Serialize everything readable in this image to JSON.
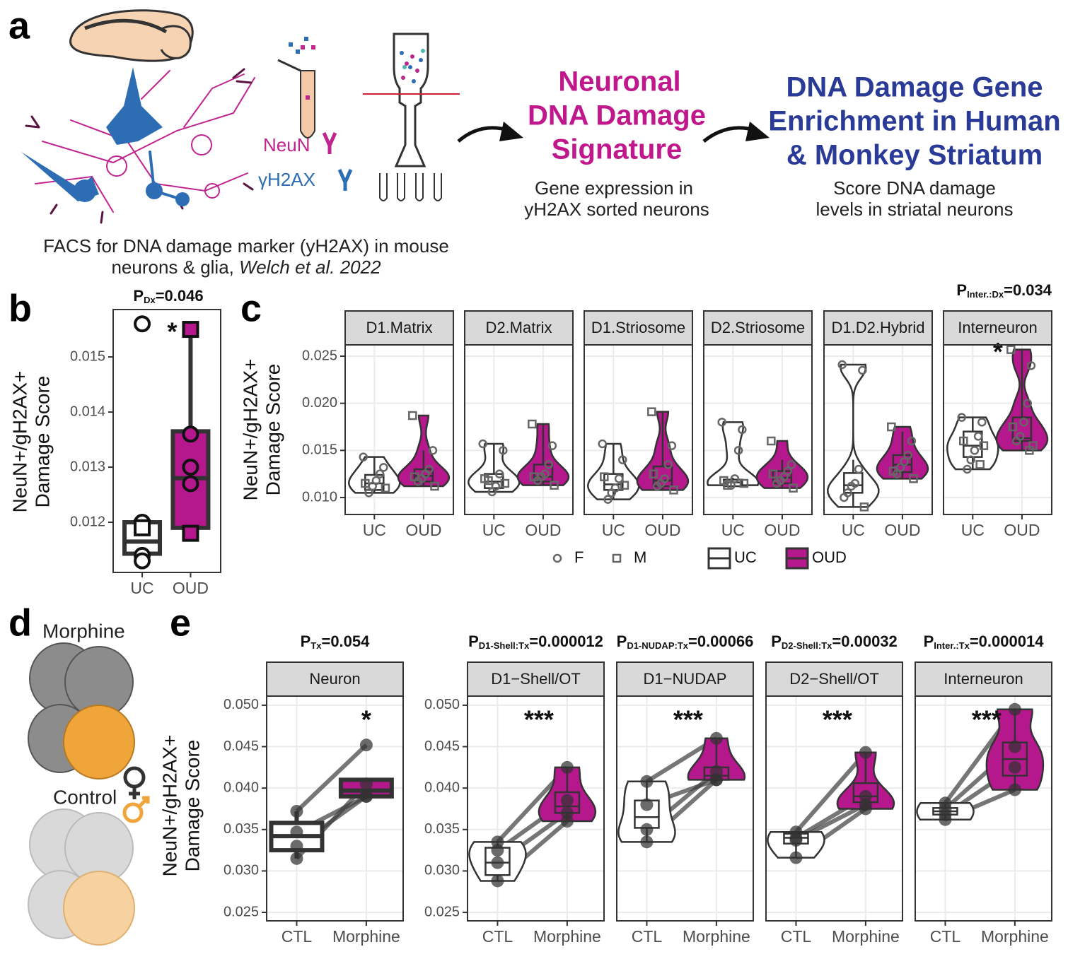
{
  "panel_labels": [
    "a",
    "b",
    "c",
    "d",
    "e"
  ],
  "panel_a": {
    "neun": "NeuN",
    "h2ax": "γH2AX",
    "caption_line1": "FACS for DNA damage marker (yH2AX) in mouse",
    "caption_line2": "neurons & glia, ",
    "caption_italic": "Welch et al. 2022",
    "step1_title": [
      "Neuronal",
      "DNA Damage",
      "Signature"
    ],
    "step1_text": [
      "Gene expression in",
      "yH2AX sorted neurons"
    ],
    "step2_title": [
      "DNA Damage Gene",
      "Enrichment in Human",
      "& Monkey Striatum"
    ],
    "step2_text": [
      "Score DNA damage",
      "levels in striatal neurons"
    ]
  },
  "panel_d": {
    "morphine": "Morphine",
    "control": "Control"
  },
  "chart_data": [
    {
      "type": "box",
      "p_label": {
        "main": "P",
        "sub": "Dx",
        "rest": "=0.046"
      },
      "y_label": [
        "NeuN+/gH2AX+",
        "Damage Score"
      ],
      "ylim": [
        0.01109,
        0.01586
      ],
      "yticks": [
        0.012,
        0.013,
        0.014,
        0.015
      ],
      "categories": [
        "UC",
        "OUD"
      ],
      "colors": [
        "#ffffff",
        "#b5178d"
      ],
      "grid": false,
      "violin": false,
      "facets": [
        {
          "groups": [
            {
              "points": [
                0.0156,
                0.012,
                0.0119,
                0.0114,
                0.0113
              ],
              "sex": [
                "F",
                "F",
                "M",
                "F",
                "F"
              ],
              "q1": 0.01143,
              "median": 0.01165,
              "q3": 0.012,
              "lo": 0.0113,
              "hi": 0.012
            },
            {
              "points": [
                0.0155,
                0.0136,
                0.013,
                0.0127,
                0.0118
              ],
              "sex": [
                "M",
                "F",
                "F",
                "F",
                "M"
              ],
              "q1": 0.0119,
              "median": 0.0128,
              "q3": 0.01365,
              "lo": 0.0118,
              "hi": 0.0155,
              "significance": "*"
            }
          ]
        }
      ]
    },
    {
      "type": "violin",
      "p_label": {
        "main": "P",
        "sub": "Inter.:Dx",
        "rest": "=0.034"
      },
      "y_label": [
        "NeuN+/gH2AX+",
        "Damage Score"
      ],
      "ylim": [
        0.0082,
        0.0262
      ],
      "yticks": [
        {
          "value": 0.01,
          "label": "0.010"
        },
        0.015,
        {
          "value": 0.02,
          "label": "0.020"
        },
        0.025
      ],
      "categories": [
        "UC",
        "OUD"
      ],
      "colors": [
        "#ffffff",
        "#b5178d"
      ],
      "grid": true,
      "violin": true,
      "legend": true,
      "shape_legend": [
        {
          "label": "F",
          "shape": "circle"
        },
        {
          "label": "M",
          "shape": "square"
        }
      ],
      "facets": [
        {
          "name": "D1.Matrix",
          "groups": [
            {
              "points": [
                0.0143,
                0.0132,
                0.0125,
                0.0118,
                0.0112,
                0.0105,
                0.0115,
                0.011
              ],
              "sex": [
                "F",
                "F",
                "F",
                "F",
                "F",
                "F",
                "M",
                "M"
              ],
              "q1": 0.0108,
              "median": 0.0115,
              "q3": 0.0124,
              "lo": 0.0105,
              "hi": 0.0143
            },
            {
              "points": [
                0.0187,
                0.015,
                0.013,
                0.0125,
                0.012,
                0.0117,
                0.0122,
                0.0112
              ],
              "sex": [
                "M",
                "F",
                "F",
                "F",
                "F",
                "F",
                "M",
                "M"
              ],
              "q1": 0.0117,
              "median": 0.0123,
              "q3": 0.013,
              "lo": 0.0112,
              "hi": 0.015
            }
          ]
        },
        {
          "name": "D2.Matrix",
          "groups": [
            {
              "points": [
                0.0157,
                0.015,
                0.0125,
                0.0112,
                0.0106,
                0.0118,
                0.012,
                0.0115
              ],
              "sex": [
                "F",
                "F",
                "F",
                "F",
                "F",
                "M",
                "M",
                "M"
              ],
              "q1": 0.011,
              "median": 0.0117,
              "q3": 0.0125,
              "lo": 0.0106,
              "hi": 0.0157
            },
            {
              "points": [
                0.0178,
                0.0155,
                0.0135,
                0.0125,
                0.0122,
                0.0118,
                0.0122,
                0.0113
              ],
              "sex": [
                "M",
                "F",
                "F",
                "F",
                "F",
                "F",
                "M",
                "M"
              ],
              "q1": 0.0117,
              "median": 0.0122,
              "q3": 0.0135,
              "lo": 0.0113,
              "hi": 0.0178
            }
          ]
        },
        {
          "name": "D1.Striosome",
          "groups": [
            {
              "points": [
                0.0157,
                0.014,
                0.012,
                0.011,
                0.0105,
                0.0098,
                0.0122,
                0.0113
              ],
              "sex": [
                "F",
                "F",
                "F",
                "F",
                "F",
                "F",
                "M",
                "M"
              ],
              "q1": 0.0108,
              "median": 0.0114,
              "q3": 0.0125,
              "lo": 0.0098,
              "hi": 0.0157
            },
            {
              "points": [
                0.0191,
                0.0155,
                0.0135,
                0.012,
                0.0115,
                0.0112,
                0.0125,
                0.0108
              ],
              "sex": [
                "M",
                "F",
                "F",
                "F",
                "F",
                "F",
                "M",
                "M"
              ],
              "q1": 0.0112,
              "median": 0.0118,
              "q3": 0.0133,
              "lo": 0.0108,
              "hi": 0.0191
            }
          ]
        },
        {
          "name": "D2.Striosome",
          "groups": [
            {
              "points": [
                0.018,
                0.0172,
                0.015,
                0.012,
                0.0113,
                0.0113,
                0.0118,
                0.0115
              ],
              "sex": [
                "F",
                "F",
                "F",
                "F",
                "F",
                "M",
                "M",
                "M"
              ],
              "q1": 0.0112,
              "median": 0.0116,
              "q3": 0.0119,
              "lo": 0.0112,
              "hi": 0.0121
            },
            {
              "points": [
                0.016,
                0.0135,
                0.0128,
                0.0122,
                0.0118,
                0.0115,
                0.0125,
                0.011
              ],
              "sex": [
                "M",
                "F",
                "F",
                "F",
                "F",
                "F",
                "M",
                "M"
              ],
              "q1": 0.0115,
              "median": 0.0121,
              "q3": 0.0128,
              "lo": 0.011,
              "hi": 0.014
            }
          ]
        },
        {
          "name": "D1.D2.Hybrid",
          "groups": [
            {
              "points": [
                0.0241,
                0.0235,
                0.013,
                0.0115,
                0.0112,
                0.0105,
                0.01,
                0.009
              ],
              "sex": [
                "F",
                "F",
                "F",
                "F",
                "F",
                "F",
                "F",
                "M"
              ],
              "q1": 0.0105,
              "median": 0.0113,
              "q3": 0.0126,
              "lo": 0.009,
              "hi": 0.014
            },
            {
              "points": [
                0.0175,
                0.016,
                0.0145,
                0.0138,
                0.0132,
                0.0125,
                0.0128,
                0.012
              ],
              "sex": [
                "M",
                "F",
                "F",
                "F",
                "F",
                "F",
                "M",
                "M"
              ],
              "q1": 0.0127,
              "median": 0.0135,
              "q3": 0.0145,
              "lo": 0.012,
              "hi": 0.017
            }
          ]
        },
        {
          "name": "Interneuron",
          "groups": [
            {
              "points": [
                0.0185,
                0.018,
                0.0165,
                0.015,
                0.014,
                0.013,
                0.016,
                0.0155,
                0.0135
              ],
              "sex": [
                "F",
                "F",
                "F",
                "F",
                "F",
                "F",
                "M",
                "M",
                "M"
              ],
              "q1": 0.0143,
              "median": 0.0155,
              "q3": 0.017,
              "lo": 0.013,
              "hi": 0.0185
            },
            {
              "points": [
                0.0257,
                0.024,
                0.02,
                0.018,
                0.0165,
                0.016,
                0.0175,
                0.0155,
                0.015
              ],
              "sex": [
                "M",
                "F",
                "F",
                "F",
                "F",
                "F",
                "M",
                "M",
                "M"
              ],
              "q1": 0.016,
              "median": 0.0163,
              "q3": 0.0185,
              "lo": 0.015,
              "hi": 0.0257,
              "significance": "*"
            }
          ]
        }
      ]
    },
    {
      "type": "violin",
      "y_label": [
        "NeuN+/gH2AX+",
        "Damage Score"
      ],
      "ylim": [
        0.02398,
        0.0511
      ],
      "yticks": [
        0.025,
        {
          "value": 0.03,
          "label": "0.030"
        },
        0.035,
        {
          "value": 0.04,
          "label": "0.040"
        },
        0.045,
        {
          "value": 0.05,
          "label": "0.050"
        }
      ],
      "categories": [
        "CTL",
        "Morphine"
      ],
      "colors": [
        "#ffffff",
        "#b5178d"
      ],
      "grid": true,
      "paired": true,
      "facets": [
        {
          "name": "Neuron",
          "violin": false,
          "p_label": {
            "main": "P",
            "sub": "Tx",
            "rest": "=0.054"
          },
          "groups": [
            {
              "points": [
                0.0372,
                0.0347,
                0.033,
                0.0315
              ],
              "q1": 0.0325,
              "median": 0.0342,
              "q3": 0.0358,
              "lo": 0.0315,
              "hi": 0.0372
            },
            {
              "points": [
                0.0452,
                0.039,
                0.039,
                0.0405
              ],
              "q1": 0.039,
              "median": 0.0397,
              "q3": 0.041,
              "lo": 0.039,
              "hi": 0.041,
              "significance": "*"
            }
          ]
        },
        {
          "name": "D1−Shell/OT",
          "violin": true,
          "p_label": {
            "main": "P",
            "sub": "D1-Shell:Tx",
            "rest": "=0.000012"
          },
          "groups": [
            {
              "points": [
                0.0335,
                0.0325,
                0.031,
                0.0288
              ],
              "q1": 0.0295,
              "median": 0.031,
              "q3": 0.0328,
              "lo": 0.0288,
              "hi": 0.0335
            },
            {
              "points": [
                0.0425,
                0.0385,
                0.037,
                0.036
              ],
              "q1": 0.037,
              "median": 0.0378,
              "q3": 0.0395,
              "lo": 0.036,
              "hi": 0.0425,
              "significance": "***"
            }
          ]
        },
        {
          "name": "D1−NUDAP",
          "violin": true,
          "p_label": {
            "main": "P",
            "sub": "D1-NUDAP:Tx",
            "rest": "=0.00066"
          },
          "groups": [
            {
              "points": [
                0.0408,
                0.038,
                0.035,
                0.0335
              ],
              "q1": 0.0352,
              "median": 0.0365,
              "q3": 0.0385,
              "lo": 0.0335,
              "hi": 0.0408
            },
            {
              "points": [
                0.046,
                0.041,
                0.042,
                0.041
              ],
              "q1": 0.041,
              "median": 0.0415,
              "q3": 0.0425,
              "lo": 0.0408,
              "hi": 0.046,
              "significance": "***"
            }
          ]
        },
        {
          "name": "D2−Shell/OT",
          "violin": true,
          "p_label": {
            "main": "P",
            "sub": "D2-Shell:Tx",
            "rest": "=0.00032"
          },
          "groups": [
            {
              "points": [
                0.0347,
                0.034,
                0.0337,
                0.0316
              ],
              "q1": 0.0333,
              "median": 0.034,
              "q3": 0.0345,
              "lo": 0.0316,
              "hi": 0.0347
            },
            {
              "points": [
                0.0443,
                0.039,
                0.038,
                0.0375
              ],
              "q1": 0.0383,
              "median": 0.039,
              "q3": 0.0406,
              "lo": 0.0375,
              "hi": 0.0443,
              "significance": "***"
            }
          ]
        },
        {
          "name": "Interneuron",
          "violin": true,
          "p_label": {
            "main": "P",
            "sub": "Inter.:Tx",
            "rest": "=0.000014"
          },
          "groups": [
            {
              "points": [
                0.0382,
                0.0375,
                0.0368,
                0.0362
              ],
              "q1": 0.0368,
              "median": 0.0372,
              "q3": 0.0376,
              "lo": 0.0362,
              "hi": 0.0382
            },
            {
              "points": [
                0.0495,
                0.045,
                0.0425,
                0.0398
              ],
              "q1": 0.0415,
              "median": 0.0435,
              "q3": 0.0455,
              "lo": 0.0398,
              "hi": 0.0495,
              "significance": "***"
            }
          ]
        }
      ]
    }
  ]
}
